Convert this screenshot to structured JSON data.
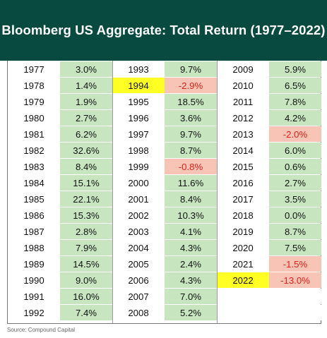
{
  "header": {
    "title": "Bloomberg US Aggregate: Total Return (1977–2022)"
  },
  "source": "Source: Compound Capital",
  "colors": {
    "header_bg": "#084a3f",
    "positive_bg": "#c7e6c0",
    "negative_bg": "#f7c4b6",
    "negative_text": "#e0211a",
    "highlight": "#ffff24"
  },
  "chart_data": {
    "type": "table",
    "title": "Bloomberg US Aggregate: Total Return (1977–2022)",
    "columns": [
      [
        {
          "year": "1977",
          "ret": "3.0%"
        },
        {
          "year": "1978",
          "ret": "1.4%"
        },
        {
          "year": "1979",
          "ret": "1.9%"
        },
        {
          "year": "1980",
          "ret": "2.7%"
        },
        {
          "year": "1981",
          "ret": "6.2%"
        },
        {
          "year": "1982",
          "ret": "32.6%"
        },
        {
          "year": "1983",
          "ret": "8.4%"
        },
        {
          "year": "1984",
          "ret": "15.1%"
        },
        {
          "year": "1985",
          "ret": "22.1%"
        },
        {
          "year": "1986",
          "ret": "15.3%"
        },
        {
          "year": "1987",
          "ret": "2.8%"
        },
        {
          "year": "1988",
          "ret": "7.9%"
        },
        {
          "year": "1989",
          "ret": "14.5%"
        },
        {
          "year": "1990",
          "ret": "9.0%"
        },
        {
          "year": "1991",
          "ret": "16.0%"
        },
        {
          "year": "1992",
          "ret": "7.4%"
        }
      ],
      [
        {
          "year": "1993",
          "ret": "9.7%"
        },
        {
          "year": "1994",
          "ret": "-2.9%",
          "highlight": true
        },
        {
          "year": "1995",
          "ret": "18.5%"
        },
        {
          "year": "1996",
          "ret": "3.6%"
        },
        {
          "year": "1997",
          "ret": "9.7%"
        },
        {
          "year": "1998",
          "ret": "8.7%"
        },
        {
          "year": "1999",
          "ret": "-0.8%"
        },
        {
          "year": "2000",
          "ret": "11.6%"
        },
        {
          "year": "2001",
          "ret": "8.4%"
        },
        {
          "year": "2002",
          "ret": "10.3%"
        },
        {
          "year": "2003",
          "ret": "4.1%"
        },
        {
          "year": "2004",
          "ret": "4.3%"
        },
        {
          "year": "2005",
          "ret": "2.4%"
        },
        {
          "year": "2006",
          "ret": "4.3%"
        },
        {
          "year": "2007",
          "ret": "7.0%"
        },
        {
          "year": "2008",
          "ret": "5.2%"
        }
      ],
      [
        {
          "year": "2009",
          "ret": "5.9%"
        },
        {
          "year": "2010",
          "ret": "6.5%"
        },
        {
          "year": "2011",
          "ret": "7.8%"
        },
        {
          "year": "2012",
          "ret": "4.2%"
        },
        {
          "year": "2013",
          "ret": "-2.0%"
        },
        {
          "year": "2014",
          "ret": "6.0%"
        },
        {
          "year": "2015",
          "ret": "0.6%"
        },
        {
          "year": "2016",
          "ret": "2.7%"
        },
        {
          "year": "2017",
          "ret": "3.5%"
        },
        {
          "year": "2018",
          "ret": "0.0%"
        },
        {
          "year": "2019",
          "ret": "8.7%"
        },
        {
          "year": "2020",
          "ret": "7.5%"
        },
        {
          "year": "2021",
          "ret": "-1.5%"
        },
        {
          "year": "2022",
          "ret": "-13.0%",
          "highlight": true
        }
      ]
    ],
    "total_rows": 16
  }
}
